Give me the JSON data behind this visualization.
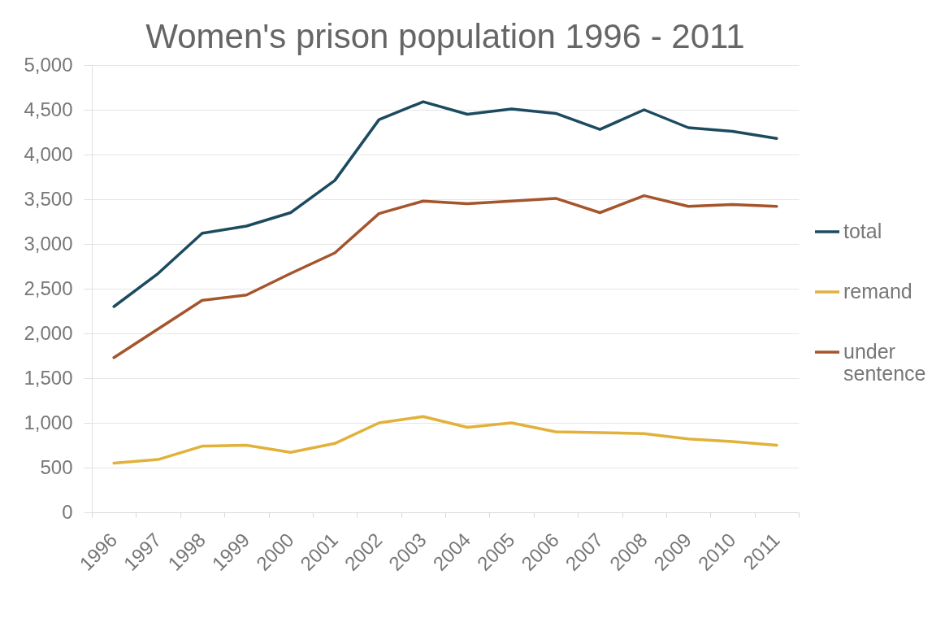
{
  "chart_data": {
    "type": "line",
    "title": "Women's prison population 1996 - 2011",
    "categories": [
      "1996",
      "1997",
      "1998",
      "1999",
      "2000",
      "2001",
      "2002",
      "2003",
      "2004",
      "2005",
      "2006",
      "2007",
      "2008",
      "2009",
      "2010",
      "2011"
    ],
    "series": [
      {
        "name": "total",
        "color": "#1c4b5f",
        "values": [
          2300,
          2670,
          3120,
          3200,
          3350,
          3710,
          4390,
          4590,
          4450,
          4510,
          4460,
          4280,
          4500,
          4300,
          4260,
          4180
        ]
      },
      {
        "name": "remand",
        "color": "#e1b13a",
        "values": [
          550,
          590,
          740,
          750,
          670,
          770,
          1000,
          1070,
          950,
          1000,
          900,
          890,
          880,
          820,
          790,
          750
        ]
      },
      {
        "name": "under sentence",
        "color": "#a4552c",
        "values": [
          1730,
          2050,
          2370,
          2430,
          2670,
          2900,
          3340,
          3480,
          3450,
          3480,
          3510,
          3350,
          3540,
          3420,
          3440,
          3420
        ]
      }
    ],
    "ylim": [
      0,
      5000
    ],
    "yticks": [
      0,
      500,
      {
        "value": 1000,
        "label": "1,000"
      },
      {
        "value": 1500,
        "label": "1,500"
      },
      {
        "value": 2000,
        "label": "2,000"
      },
      {
        "value": 2500,
        "label": "2,500"
      },
      {
        "value": 3000,
        "label": "3,000"
      },
      {
        "value": 3500,
        "label": "3,500"
      },
      {
        "value": 4000,
        "label": "4,000"
      },
      {
        "value": 4500,
        "label": "4,500"
      },
      {
        "value": 5000,
        "label": "5,000"
      }
    ],
    "grid": "y",
    "legend": "right"
  }
}
